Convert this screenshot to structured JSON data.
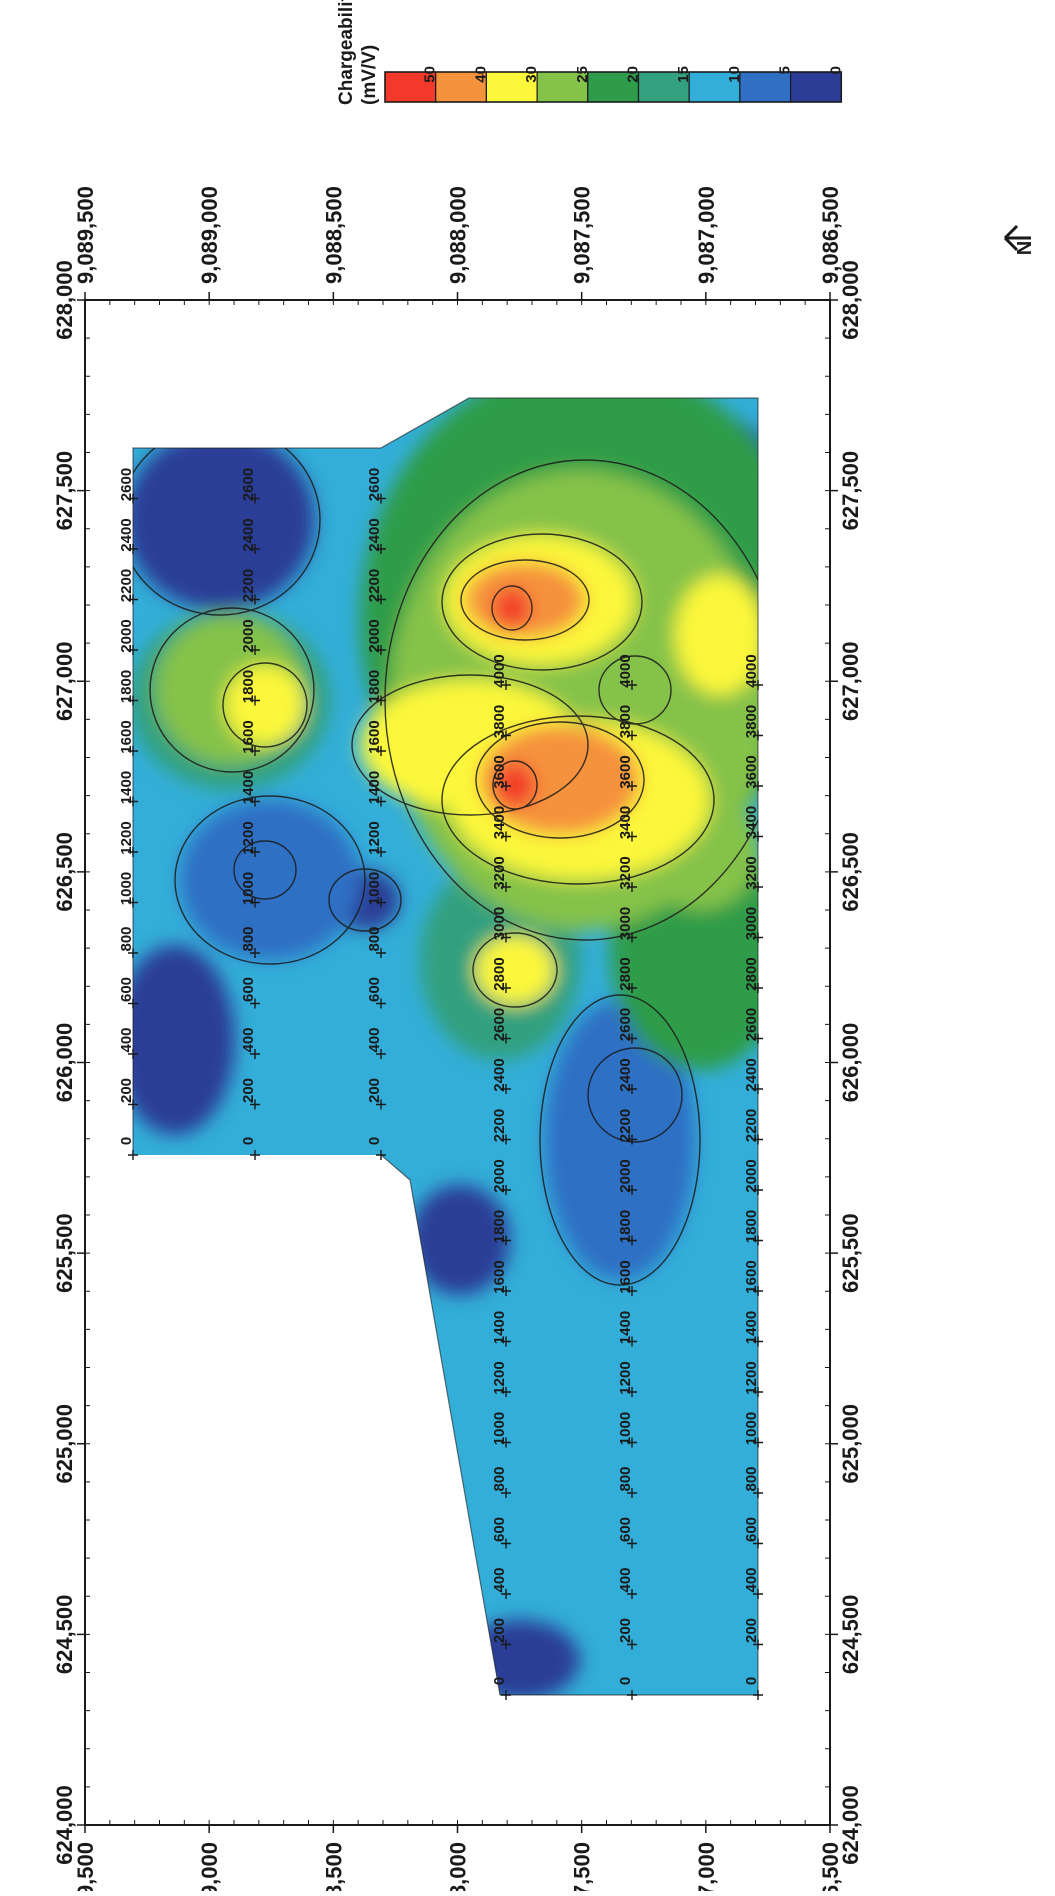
{
  "legend": {
    "title_line1": "Chargeability",
    "title_line2": "(mV/V)",
    "labels": [
      "50",
      "40",
      "30",
      "25",
      "20",
      "15",
      "10",
      "5",
      "0"
    ],
    "colors": [
      "#f33a2a",
      "#f5923c",
      "#fbf73a",
      "#85c24a",
      "#2e9c4a",
      "#33a07e",
      "#33aed8",
      "#2f6fc4",
      "#2b3d97"
    ]
  },
  "north_arrow_label": "N",
  "map": {
    "easting_labels": [
      "624,000",
      "624,500",
      "625,000",
      "625,500",
      "626,000",
      "626,500",
      "627,000",
      "627,500",
      "628,000"
    ],
    "northing_labels": [
      "9,089,500",
      "9,089,000",
      "9,088,500",
      "9,088,000",
      "9,087,500",
      "9,087,000",
      "9,086,500"
    ],
    "lines": [
      {
        "stations": [
          "0",
          "200",
          "400",
          "600",
          "800",
          "1000",
          "1200",
          "1400",
          "1600",
          "1800",
          "2000",
          "2200",
          "2400",
          "2600"
        ]
      },
      {
        "stations": [
          "0",
          "200",
          "400",
          "600",
          "800",
          "1000",
          "1200",
          "1400",
          "1600",
          "1800",
          "2000",
          "2200",
          "2400",
          "2600"
        ]
      },
      {
        "stations": [
          "0",
          "200",
          "400",
          "600",
          "800",
          "1000",
          "1200",
          "1400",
          "1600",
          "1800",
          "2000",
          "2200",
          "2400",
          "2600"
        ]
      },
      {
        "stations": [
          "0",
          "200",
          "400",
          "600",
          "800",
          "1000",
          "1200",
          "1400",
          "1600",
          "1800",
          "2000",
          "2200",
          "2400",
          "2600",
          "2800",
          "3000",
          "3200",
          "3400",
          "3600",
          "3800",
          "4000"
        ]
      },
      {
        "stations": [
          "0",
          "200",
          "400",
          "600",
          "800",
          "1000",
          "1200",
          "1400",
          "1600",
          "1800",
          "2000",
          "2200",
          "2400",
          "2600",
          "2800",
          "3000",
          "3200",
          "3400",
          "3600",
          "3800",
          "4000"
        ]
      },
      {
        "stations": [
          "0",
          "200",
          "400",
          "600",
          "800",
          "1000",
          "1200",
          "1400",
          "1600",
          "1800",
          "2000",
          "2200",
          "2400",
          "2600",
          "2800",
          "3000",
          "3200",
          "3400",
          "3600",
          "3800",
          "4000"
        ]
      }
    ]
  }
}
